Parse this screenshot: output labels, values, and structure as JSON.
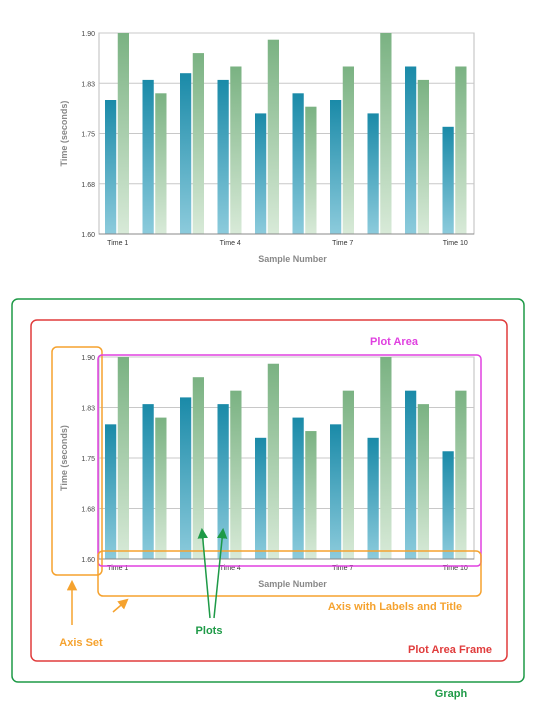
{
  "chart_data": {
    "type": "bar",
    "title": "",
    "xlabel": "Sample Number",
    "ylabel": "Time (seconds)",
    "ylim": [
      1.6,
      1.9
    ],
    "yticks": [
      "1.90",
      "1.83",
      "1.75",
      "1.68",
      "1.60"
    ],
    "ytick_values": [
      1.9,
      1.825,
      1.75,
      1.675,
      1.6
    ],
    "xtick_labels": [
      {
        "index": 0,
        "label": "Time 1"
      },
      {
        "index": 3,
        "label": "Time 4"
      },
      {
        "index": 6,
        "label": "Time 7"
      },
      {
        "index": 9,
        "label": "Time 10"
      }
    ],
    "grid": true,
    "categories": [
      "1",
      "2",
      "3",
      "4",
      "5",
      "6",
      "7",
      "8",
      "9",
      "10"
    ],
    "series": [
      {
        "values": [
          1.8,
          1.83,
          1.84,
          1.83,
          1.78,
          1.81,
          1.8,
          1.78,
          1.85,
          1.76
        ],
        "color_top": "#1a8aa8",
        "color_bottom": "#8ccbdc"
      },
      {
        "values": [
          1.9,
          1.81,
          1.87,
          1.85,
          1.89,
          1.79,
          1.85,
          1.9,
          1.83,
          1.85
        ],
        "color_top": "#7ab282",
        "color_bottom": "#d8ead8"
      }
    ]
  },
  "annotations": {
    "plot_area": "Plot Area",
    "axis_labels_title": "Axis with Labels and Title",
    "axis_set": "Axis Set",
    "plots": "Plots",
    "plot_area_frame": "Plot Area Frame",
    "graph": "Graph"
  },
  "colors": {
    "graph": "#1e9a47",
    "plot_area_frame": "#e03c3c",
    "axis": "#f5a22e",
    "plot_area": "#e040e0",
    "plots": "#1e9a47",
    "grid": "#c8c8c8",
    "axis_text": "#888888"
  }
}
